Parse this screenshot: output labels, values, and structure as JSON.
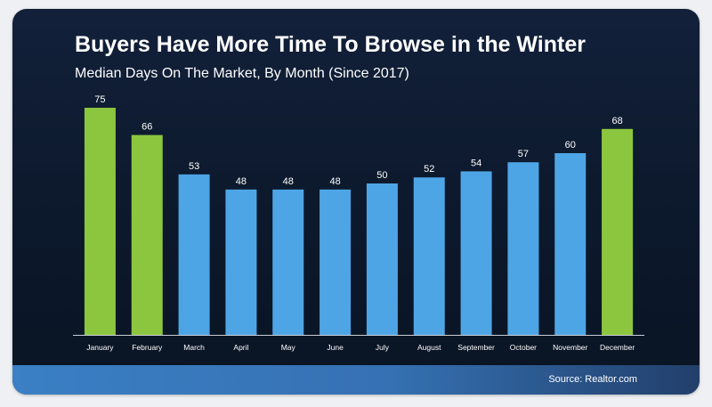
{
  "chart_data": {
    "type": "bar",
    "title": "Buyers Have More Time To Browse in the Winter",
    "subtitle": "Median Days On The Market, By Month (Since 2017)",
    "xlabel": "",
    "ylabel": "",
    "ylim": [
      0,
      75
    ],
    "grid": false,
    "legend": "none",
    "categories": [
      "January",
      "February",
      "March",
      "April",
      "May",
      "June",
      "July",
      "August",
      "September",
      "October",
      "November",
      "December"
    ],
    "values": [
      75,
      66,
      53,
      48,
      48,
      48,
      50,
      52,
      54,
      57,
      60,
      68
    ],
    "highlighted": [
      "January",
      "February",
      "December"
    ],
    "data_labels": [
      "75",
      "66",
      "53",
      "48",
      "48",
      "48",
      "50",
      "52",
      "54",
      "57",
      "60",
      "68"
    ]
  },
  "colors": {
    "highlight_bar": "#8cc63f",
    "normal_bar": "#4ea5e6",
    "label_text": "#ffffff",
    "baseline": "#c9ced6"
  },
  "footer": {
    "source": "Source: Realtor.com"
  }
}
